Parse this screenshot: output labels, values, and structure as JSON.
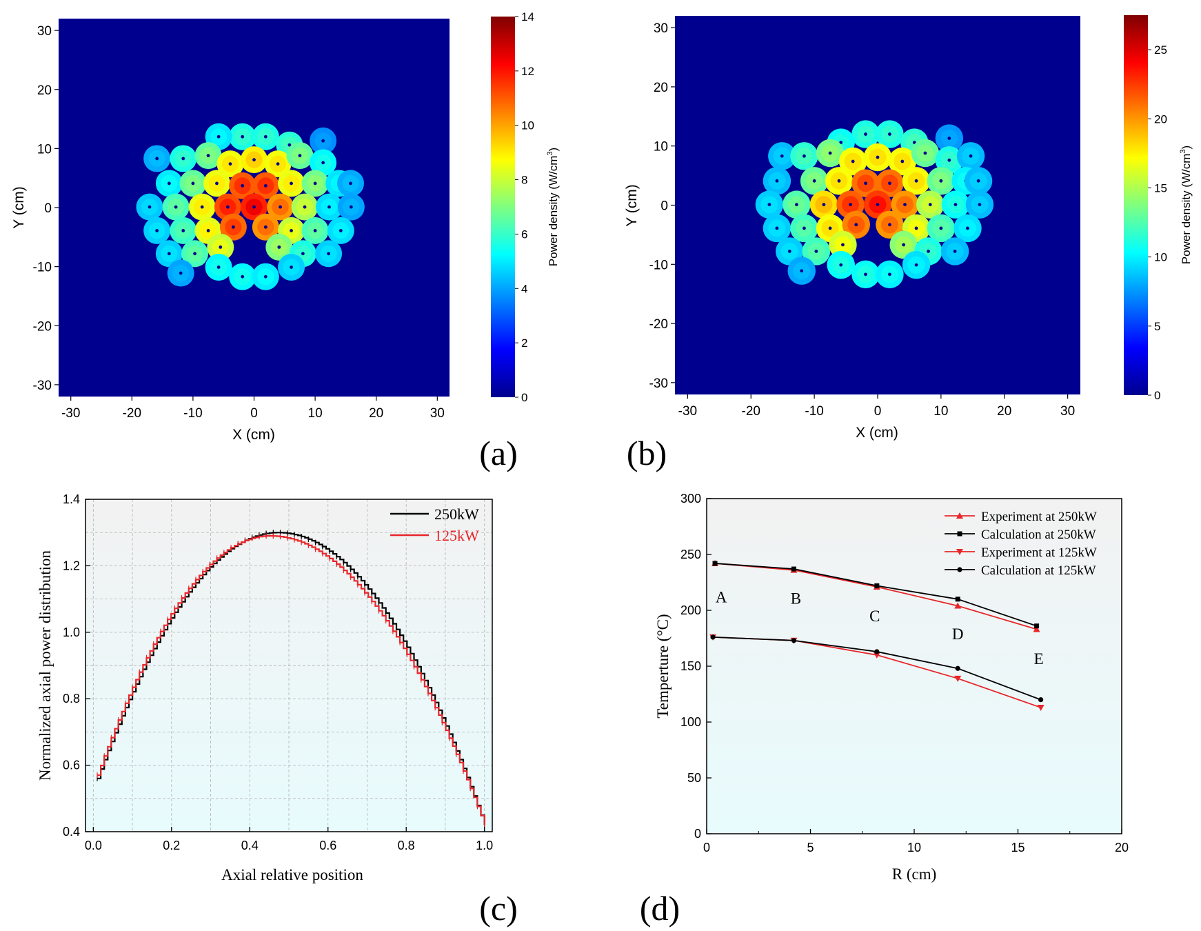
{
  "panels": {
    "a": "(a)",
    "b": "(b)",
    "c": "(c)",
    "d": "(d)"
  },
  "chart_data": [
    {
      "id": "a",
      "type": "heatmap",
      "xlabel": "X (cm)",
      "ylabel": "Y (cm)",
      "xlim": [
        -32,
        32
      ],
      "ylim": [
        -32,
        32
      ],
      "xticks": [
        "-30",
        "-20",
        "-10",
        "0",
        "10",
        "20",
        "30"
      ],
      "yticks": [
        "-30",
        "-20",
        "-10",
        "0",
        "10",
        "20",
        "30"
      ],
      "colorbar": {
        "label": "Power density (W/cm",
        "label_sup": "3",
        "label_end": ")",
        "range": [
          0,
          14
        ],
        "ticks": [
          "0",
          "2",
          "4",
          "6",
          "8",
          "10",
          "12",
          "14"
        ]
      },
      "background_color": "#00008f",
      "rod_radius": 2.2,
      "rods": [
        {
          "x": -1.9,
          "y": 12.0,
          "v": 5.6
        },
        {
          "x": 1.9,
          "y": 12.0,
          "v": 5.6
        },
        {
          "x": -5.8,
          "y": 12.0,
          "v": 4.9
        },
        {
          "x": 5.8,
          "y": 10.6,
          "v": 5.8
        },
        {
          "x": 11.3,
          "y": 11.3,
          "v": 3.7
        },
        {
          "x": -15.9,
          "y": 8.3,
          "v": 4.1
        },
        {
          "x": -11.6,
          "y": 8.3,
          "v": 5.6
        },
        {
          "x": -7.5,
          "y": 8.8,
          "v": 6.6
        },
        {
          "x": -3.9,
          "y": 7.4,
          "v": 8.6
        },
        {
          "x": 0.0,
          "y": 8.1,
          "v": 8.9
        },
        {
          "x": 3.9,
          "y": 7.4,
          "v": 8.6
        },
        {
          "x": 7.5,
          "y": 8.8,
          "v": 6.6
        },
        {
          "x": 11.3,
          "y": 7.6,
          "v": 5.2
        },
        {
          "x": -13.9,
          "y": 4.1,
          "v": 5.0
        },
        {
          "x": -10.0,
          "y": 4.1,
          "v": 6.6
        },
        {
          "x": -6.1,
          "y": 4.1,
          "v": 8.5
        },
        {
          "x": -1.9,
          "y": 3.7,
          "v": 11.0
        },
        {
          "x": 1.9,
          "y": 3.7,
          "v": 11.0
        },
        {
          "x": 6.1,
          "y": 4.1,
          "v": 8.5
        },
        {
          "x": 10.0,
          "y": 4.1,
          "v": 6.8
        },
        {
          "x": 13.9,
          "y": 4.1,
          "v": 4.9
        },
        {
          "x": 15.8,
          "y": 4.1,
          "v": 4.1
        },
        {
          "x": -17.1,
          "y": 0.1,
          "v": 4.5
        },
        {
          "x": -12.8,
          "y": 0.1,
          "v": 6.2
        },
        {
          "x": -8.5,
          "y": 0.1,
          "v": 8.5
        },
        {
          "x": -4.3,
          "y": 0.1,
          "v": 11.2
        },
        {
          "x": 0.0,
          "y": 0.1,
          "v": 11.8
        },
        {
          "x": 4.3,
          "y": 0.1,
          "v": 10.2
        },
        {
          "x": 8.3,
          "y": 0.1,
          "v": 7.6
        },
        {
          "x": 12.3,
          "y": 0.1,
          "v": 4.8
        },
        {
          "x": 15.9,
          "y": 0.1,
          "v": 4.0
        },
        {
          "x": -15.9,
          "y": -3.9,
          "v": 4.6
        },
        {
          "x": -11.6,
          "y": -3.9,
          "v": 6.0
        },
        {
          "x": -7.5,
          "y": -3.9,
          "v": 8.4
        },
        {
          "x": -3.4,
          "y": -3.3,
          "v": 10.8
        },
        {
          "x": 1.9,
          "y": -3.3,
          "v": 10.2
        },
        {
          "x": 6.1,
          "y": -3.9,
          "v": 8.0
        },
        {
          "x": 10.0,
          "y": -3.9,
          "v": 6.2
        },
        {
          "x": 14.2,
          "y": -3.9,
          "v": 4.8
        },
        {
          "x": -13.9,
          "y": -7.8,
          "v": 4.6
        },
        {
          "x": -9.7,
          "y": -7.8,
          "v": 6.2
        },
        {
          "x": -5.5,
          "y": -6.7,
          "v": 8.0
        },
        {
          "x": 4.1,
          "y": -6.7,
          "v": 7.0
        },
        {
          "x": 8.0,
          "y": -7.8,
          "v": 5.6
        },
        {
          "x": 12.2,
          "y": -7.8,
          "v": 4.6
        },
        {
          "x": -12.0,
          "y": -11.1,
          "v": 4.0
        },
        {
          "x": -5.8,
          "y": -10.1,
          "v": 5.2
        },
        {
          "x": -1.9,
          "y": -11.7,
          "v": 5.2
        },
        {
          "x": 1.9,
          "y": -11.7,
          "v": 5.0
        },
        {
          "x": 6.1,
          "y": -10.1,
          "v": 4.6
        }
      ]
    },
    {
      "id": "b",
      "type": "heatmap",
      "xlabel": "X (cm)",
      "ylabel": "Y (cm)",
      "xlim": [
        -32,
        32
      ],
      "ylim": [
        -32,
        32
      ],
      "xticks": [
        "-30",
        "-20",
        "-10",
        "0",
        "10",
        "20",
        "30"
      ],
      "yticks": [
        "-30",
        "-20",
        "-10",
        "0",
        "10",
        "20",
        "30"
      ],
      "colorbar": {
        "label": "Power density (W/cm",
        "label_sup": "3",
        "label_end": ")",
        "range": [
          0,
          27.5
        ],
        "ticks": [
          "0",
          "5",
          "10",
          "15",
          "20",
          "25"
        ]
      },
      "background_color": "#00008f",
      "rod_radius": 2.2,
      "rods": [
        {
          "x": -1.9,
          "y": 12.0,
          "v": 11.0
        },
        {
          "x": 1.9,
          "y": 12.0,
          "v": 11.0
        },
        {
          "x": -5.8,
          "y": 10.6,
          "v": 10.5
        },
        {
          "x": 5.8,
          "y": 10.6,
          "v": 11.5
        },
        {
          "x": 11.3,
          "y": 11.3,
          "v": 7.5
        },
        {
          "x": -15.1,
          "y": 8.3,
          "v": 8.5
        },
        {
          "x": -11.6,
          "y": 8.3,
          "v": 11.5
        },
        {
          "x": -7.5,
          "y": 8.8,
          "v": 13.5
        },
        {
          "x": -3.9,
          "y": 7.4,
          "v": 17.0
        },
        {
          "x": 0.0,
          "y": 8.1,
          "v": 17.0
        },
        {
          "x": 3.9,
          "y": 7.4,
          "v": 17.0
        },
        {
          "x": 7.5,
          "y": 8.8,
          "v": 13.0
        },
        {
          "x": 11.3,
          "y": 7.6,
          "v": 11.0
        },
        {
          "x": 14.7,
          "y": 8.3,
          "v": 8.5
        },
        {
          "x": -15.9,
          "y": 4.1,
          "v": 8.5
        },
        {
          "x": -10.0,
          "y": 4.1,
          "v": 13.0
        },
        {
          "x": -6.1,
          "y": 4.1,
          "v": 17.0
        },
        {
          "x": -1.9,
          "y": 3.7,
          "v": 21.0
        },
        {
          "x": 1.9,
          "y": 3.7,
          "v": 21.0
        },
        {
          "x": 6.1,
          "y": 4.1,
          "v": 17.0
        },
        {
          "x": 10.0,
          "y": 4.1,
          "v": 13.0
        },
        {
          "x": 13.9,
          "y": 4.1,
          "v": 10.0
        },
        {
          "x": 15.9,
          "y": 4.1,
          "v": 8.5
        },
        {
          "x": -17.1,
          "y": 0.1,
          "v": 9.0
        },
        {
          "x": -12.8,
          "y": 0.1,
          "v": 12.5
        },
        {
          "x": -8.5,
          "y": 0.1,
          "v": 18.0
        },
        {
          "x": -4.3,
          "y": 0.1,
          "v": 21.5
        },
        {
          "x": 0.0,
          "y": 0.1,
          "v": 22.5
        },
        {
          "x": 4.3,
          "y": 0.1,
          "v": 20.0
        },
        {
          "x": 8.3,
          "y": 0.1,
          "v": 15.0
        },
        {
          "x": 12.3,
          "y": 0.1,
          "v": 10.5
        },
        {
          "x": 16.1,
          "y": 0.1,
          "v": 8.5
        },
        {
          "x": -15.9,
          "y": -3.9,
          "v": 9.0
        },
        {
          "x": -11.6,
          "y": -3.9,
          "v": 12.0
        },
        {
          "x": -7.5,
          "y": -3.9,
          "v": 17.0
        },
        {
          "x": -3.4,
          "y": -3.3,
          "v": 20.5
        },
        {
          "x": 1.9,
          "y": -3.3,
          "v": 20.0
        },
        {
          "x": 6.1,
          "y": -3.9,
          "v": 16.0
        },
        {
          "x": 10.0,
          "y": -3.9,
          "v": 12.0
        },
        {
          "x": 14.2,
          "y": -3.9,
          "v": 9.5
        },
        {
          "x": -13.9,
          "y": -7.8,
          "v": 9.0
        },
        {
          "x": -9.7,
          "y": -7.8,
          "v": 12.0
        },
        {
          "x": -5.5,
          "y": -6.7,
          "v": 16.0
        },
        {
          "x": 4.1,
          "y": -6.7,
          "v": 14.0
        },
        {
          "x": 8.0,
          "y": -7.8,
          "v": 11.0
        },
        {
          "x": 12.2,
          "y": -7.8,
          "v": 8.5
        },
        {
          "x": -12.0,
          "y": -11.1,
          "v": 8.0
        },
        {
          "x": -5.8,
          "y": -10.1,
          "v": 10.5
        },
        {
          "x": -1.9,
          "y": -11.7,
          "v": 10.5
        },
        {
          "x": 1.9,
          "y": -11.7,
          "v": 10.0
        },
        {
          "x": 6.1,
          "y": -10.1,
          "v": 9.5
        }
      ]
    },
    {
      "id": "c",
      "type": "line",
      "xlabel": "Axial relative position",
      "ylabel": "Normalized axial power distribution",
      "xlim": [
        -0.02,
        1.02
      ],
      "ylim": [
        0.4,
        1.4
      ],
      "xticks": [
        0.0,
        0.2,
        0.4,
        0.6,
        0.8,
        1.0
      ],
      "xtick_labels": [
        "0.0",
        "0.2",
        "0.4",
        "0.6",
        "0.8",
        "1.0"
      ],
      "yticks": [
        0.4,
        0.6,
        0.8,
        1.0,
        1.2,
        1.4
      ],
      "ytick_labels": [
        "0.4",
        "0.6",
        "0.8",
        "1.0",
        "1.2",
        "1.4"
      ],
      "grid": true,
      "legend": "top-right",
      "series": [
        {
          "name": "250kW",
          "color": "#000000",
          "peak_x": 0.47,
          "peak": 1.3,
          "x": [
            0.01,
            0.05,
            0.1,
            0.15,
            0.2,
            0.25,
            0.3,
            0.35,
            0.4,
            0.45,
            0.5,
            0.55,
            0.6,
            0.65,
            0.7,
            0.75,
            0.8,
            0.85,
            0.9,
            0.95,
            1.0
          ],
          "values": [
            0.56,
            0.68,
            0.82,
            0.94,
            1.05,
            1.14,
            1.21,
            1.26,
            1.29,
            1.3,
            1.3,
            1.27,
            1.21,
            1.14,
            1.07,
            0.98,
            0.88,
            0.77,
            0.66,
            0.54,
            0.42
          ]
        },
        {
          "name": "125kW",
          "color": "#e8262a",
          "peak_x": 0.45,
          "peak": 1.29,
          "x": [
            0.01,
            0.05,
            0.1,
            0.15,
            0.2,
            0.25,
            0.3,
            0.35,
            0.4,
            0.45,
            0.5,
            0.55,
            0.6,
            0.65,
            0.7,
            0.75,
            0.8,
            0.85,
            0.9,
            0.95,
            1.0
          ],
          "values": [
            0.57,
            0.69,
            0.83,
            0.95,
            1.06,
            1.15,
            1.22,
            1.27,
            1.29,
            1.29,
            1.27,
            1.24,
            1.19,
            1.13,
            1.06,
            0.98,
            0.88,
            0.78,
            0.67,
            0.55,
            0.42
          ]
        }
      ]
    },
    {
      "id": "d",
      "type": "line",
      "xlabel": "R (cm)",
      "ylabel": "Temperture (°C)",
      "xlim": [
        0,
        20
      ],
      "ylim": [
        0,
        300
      ],
      "xticks": [
        0,
        5,
        10,
        15,
        20
      ],
      "xtick_labels": [
        "0",
        "5",
        "10",
        "15",
        "20"
      ],
      "yticks": [
        0,
        50,
        100,
        150,
        200,
        250,
        300
      ],
      "ytick_labels": [
        "0",
        "50",
        "100",
        "150",
        "200",
        "250",
        "300"
      ],
      "legend": "top-right",
      "annotations": [
        {
          "text": "A",
          "x": 0.7,
          "y": 207
        },
        {
          "text": "B",
          "x": 4.3,
          "y": 206
        },
        {
          "text": "C",
          "x": 8.1,
          "y": 190
        },
        {
          "text": "D",
          "x": 12.1,
          "y": 174
        },
        {
          "text": "E",
          "x": 16.0,
          "y": 152
        }
      ],
      "series": [
        {
          "name": "Experiment at 250kW",
          "color": "#e8262a",
          "marker": "triangle-up",
          "x": [
            0.4,
            4.2,
            8.2,
            12.1,
            15.9
          ],
          "values": [
            242,
            236,
            221,
            204,
            183
          ]
        },
        {
          "name": "Calculation at 250kW",
          "color": "#000000",
          "marker": "square",
          "x": [
            0.4,
            4.2,
            8.2,
            12.1,
            15.9
          ],
          "values": [
            242,
            237,
            222,
            210,
            186
          ]
        },
        {
          "name": "Experiment at 125kW",
          "color": "#e8262a",
          "marker": "triangle-down",
          "x": [
            0.3,
            4.2,
            8.2,
            12.1,
            16.1
          ],
          "values": [
            176,
            173,
            160,
            139,
            113
          ]
        },
        {
          "name": "Calculation at 125kW",
          "color": "#000000",
          "marker": "circle",
          "x": [
            0.3,
            4.2,
            8.2,
            12.1,
            16.1
          ],
          "values": [
            176,
            173,
            163,
            148,
            120
          ]
        }
      ]
    }
  ]
}
